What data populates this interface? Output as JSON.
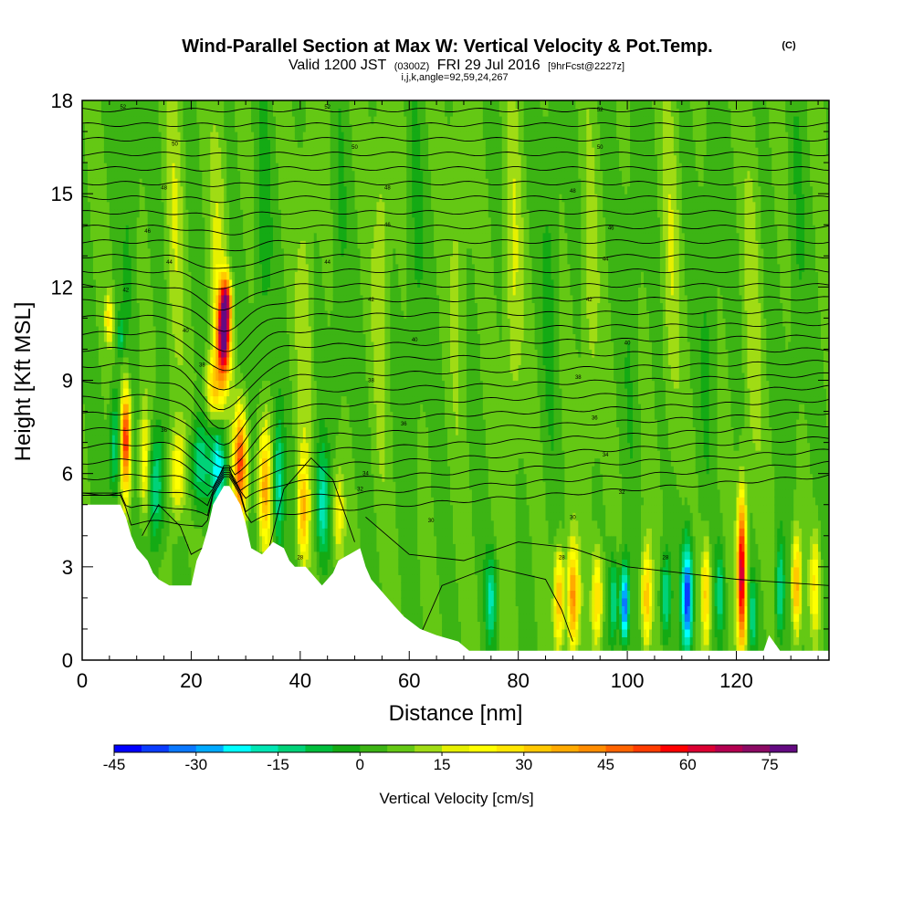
{
  "header": {
    "title_main": "Wind-Parallel Section at Max W: Vertical Velocity & Pot.Temp.",
    "title_mark": "(C)",
    "valid_prefix": "Valid 1200 JST",
    "valid_utc": "(0300Z)",
    "valid_date": "FRI 29 Jul 2016",
    "forecast": "[9hrFcst@2227z]",
    "indices": "i,j,k,angle=92,59,24,267"
  },
  "chart_data": {
    "type": "heatmap",
    "xlabel": "Distance [nm]",
    "ylabel": "Height [Kft MSL]",
    "xlim": [
      0,
      137
    ],
    "ylim": [
      0,
      18
    ],
    "x_ticks": [
      0,
      20,
      40,
      60,
      80,
      100,
      120
    ],
    "y_ticks": [
      0,
      3,
      6,
      9,
      12,
      15,
      18
    ],
    "x_tick_labels": [
      "0",
      "20",
      "40",
      "60",
      "80",
      "100",
      "120"
    ],
    "y_tick_labels": [
      "0",
      "3",
      "6",
      "9",
      "12",
      "15",
      "18"
    ],
    "grid": false,
    "colorbar": {
      "title": "Vertical Velocity [cm/s]",
      "min": -45,
      "max": 80,
      "step": 5,
      "labels": [
        "-45",
        "-30",
        "-15",
        "0",
        "15",
        "30",
        "45",
        "60",
        "75"
      ],
      "label_values": [
        -45,
        -30,
        -15,
        0,
        15,
        30,
        45,
        60,
        75
      ],
      "colors": [
        "#0000ff",
        "#0a3cff",
        "#0a78ff",
        "#00aaff",
        "#00ffff",
        "#00e6b4",
        "#00d278",
        "#00be3c",
        "#14aa14",
        "#3cb414",
        "#64c814",
        "#a0dc14",
        "#e6f000",
        "#ffff00",
        "#ffe600",
        "#ffc800",
        "#ffaa00",
        "#ff8c00",
        "#ff6400",
        "#ff3c00",
        "#ff0000",
        "#dc0032",
        "#b40050",
        "#8c0a64",
        "#640a82"
      ]
    },
    "terrain_kft": [
      [
        0,
        5.0
      ],
      [
        5,
        5.0
      ],
      [
        7,
        5.0
      ],
      [
        8,
        4.6
      ],
      [
        9,
        4.0
      ],
      [
        10,
        3.6
      ],
      [
        12,
        3.2
      ],
      [
        13,
        2.8
      ],
      [
        14,
        2.6
      ],
      [
        16,
        2.4
      ],
      [
        19,
        2.4
      ],
      [
        20,
        2.4
      ],
      [
        21,
        3.2
      ],
      [
        22,
        3.6
      ],
      [
        23,
        4.2
      ],
      [
        24,
        5.0
      ],
      [
        26,
        5.6
      ],
      [
        27,
        5.6
      ],
      [
        29,
        5.0
      ],
      [
        30,
        4.4
      ],
      [
        31,
        3.6
      ],
      [
        33,
        3.4
      ],
      [
        35,
        3.8
      ],
      [
        37,
        3.6
      ],
      [
        38,
        3.2
      ],
      [
        39,
        3.0
      ],
      [
        41,
        3.0
      ],
      [
        43,
        2.6
      ],
      [
        44,
        2.4
      ],
      [
        46,
        2.8
      ],
      [
        47,
        3.2
      ],
      [
        49,
        3.4
      ],
      [
        51,
        3.6
      ],
      [
        52,
        3.0
      ],
      [
        53,
        2.6
      ],
      [
        55,
        2.2
      ],
      [
        57,
        1.8
      ],
      [
        59,
        1.4
      ],
      [
        62,
        1.0
      ],
      [
        65,
        0.8
      ],
      [
        69,
        0.6
      ],
      [
        71,
        0.3
      ],
      [
        80,
        0.3
      ],
      [
        95,
        0.3
      ],
      [
        110,
        0.3
      ],
      [
        120,
        0.3
      ],
      [
        125,
        0.3
      ],
      [
        126,
        0.8
      ],
      [
        128,
        0.3
      ],
      [
        137,
        0.3
      ]
    ],
    "theta_labels": [
      {
        "x": 7.5,
        "y": 17.8,
        "text": "52"
      },
      {
        "x": 45,
        "y": 17.8,
        "text": "52"
      },
      {
        "x": 95,
        "y": 17.7,
        "text": "52"
      },
      {
        "x": 17,
        "y": 16.6,
        "text": "50"
      },
      {
        "x": 50,
        "y": 16.5,
        "text": "50"
      },
      {
        "x": 95,
        "y": 16.5,
        "text": "50"
      },
      {
        "x": 15,
        "y": 15.2,
        "text": "48"
      },
      {
        "x": 56,
        "y": 15.2,
        "text": "48"
      },
      {
        "x": 90,
        "y": 15.1,
        "text": "48"
      },
      {
        "x": 12,
        "y": 13.8,
        "text": "46"
      },
      {
        "x": 56,
        "y": 14.0,
        "text": "46"
      },
      {
        "x": 97,
        "y": 13.9,
        "text": "46"
      },
      {
        "x": 16,
        "y": 12.8,
        "text": "44"
      },
      {
        "x": 45,
        "y": 12.8,
        "text": "44"
      },
      {
        "x": 96,
        "y": 12.9,
        "text": "44"
      },
      {
        "x": 8,
        "y": 11.9,
        "text": "42"
      },
      {
        "x": 53,
        "y": 11.6,
        "text": "42"
      },
      {
        "x": 93,
        "y": 11.6,
        "text": "42"
      },
      {
        "x": 19,
        "y": 10.6,
        "text": "40"
      },
      {
        "x": 61,
        "y": 10.3,
        "text": "40"
      },
      {
        "x": 100,
        "y": 10.2,
        "text": "40"
      },
      {
        "x": 22,
        "y": 9.5,
        "text": "38"
      },
      {
        "x": 53,
        "y": 9.0,
        "text": "38"
      },
      {
        "x": 91,
        "y": 9.1,
        "text": "38"
      },
      {
        "x": 15,
        "y": 7.4,
        "text": "36"
      },
      {
        "x": 59,
        "y": 7.6,
        "text": "36"
      },
      {
        "x": 94,
        "y": 7.8,
        "text": "36"
      },
      {
        "x": 52,
        "y": 6.0,
        "text": "34"
      },
      {
        "x": 96,
        "y": 6.6,
        "text": "34"
      },
      {
        "x": 51,
        "y": 5.5,
        "text": "32"
      },
      {
        "x": 99,
        "y": 5.4,
        "text": "32"
      },
      {
        "x": 64,
        "y": 4.5,
        "text": "30"
      },
      {
        "x": 90,
        "y": 4.6,
        "text": "30"
      },
      {
        "x": 40,
        "y": 3.3,
        "text": "28"
      },
      {
        "x": 88,
        "y": 3.3,
        "text": "28"
      },
      {
        "x": 107,
        "y": 3.3,
        "text": "28"
      }
    ]
  }
}
